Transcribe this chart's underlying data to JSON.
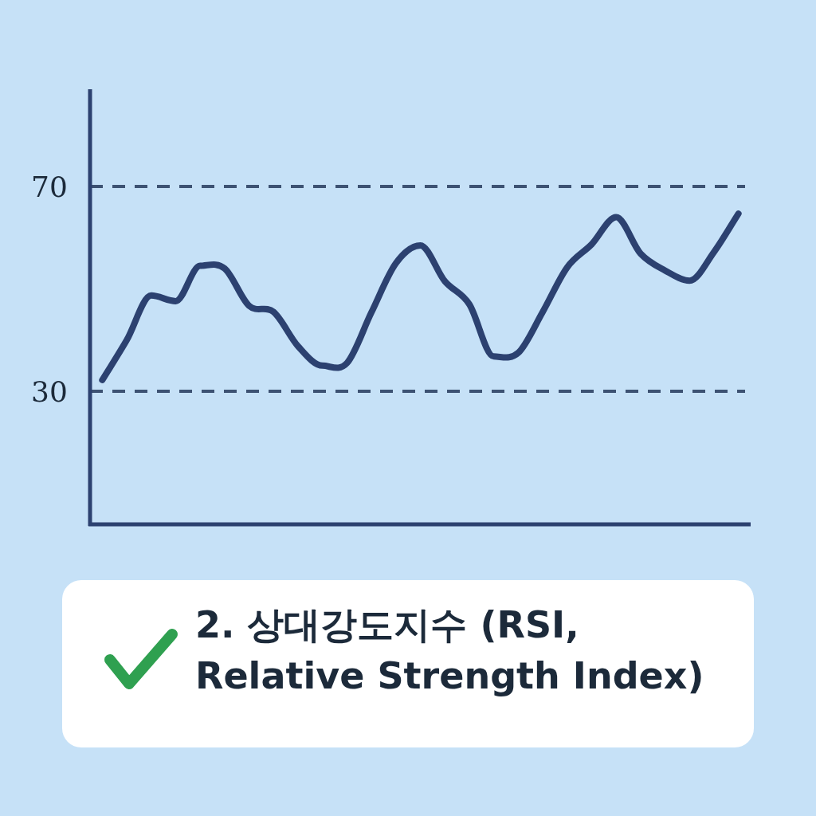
{
  "chart_data": {
    "type": "line",
    "title": "2. 상대강도지수 (RSI, Relative Strength Index)",
    "categories": [
      null,
      null,
      null,
      null,
      null,
      null,
      null,
      null,
      null,
      null,
      null,
      null,
      null,
      null,
      null,
      null,
      null,
      null,
      null,
      null,
      null,
      null,
      null,
      null,
      null,
      null,
      null
    ],
    "values": [
      32.2,
      40,
      48.7,
      47.6,
      54.5,
      54,
      46.7,
      45.5,
      38.8,
      35,
      35.5,
      45.4,
      55,
      58.5,
      51.5,
      47,
      36.8,
      37.5,
      45.5,
      54.2,
      58.7,
      64,
      56.9,
      53.6,
      51.6,
      57.2,
      64.7
    ],
    "color": "#2c4170",
    "line_style": "solid",
    "ylim": [
      4,
      89
    ],
    "yticks": [
      30,
      70
    ],
    "tick_labels": "y",
    "ref_lines": [
      {
        "axis": "y",
        "value": 70,
        "color": "#3d5273",
        "line_style": "dashed"
      },
      {
        "axis": "y",
        "value": 30,
        "color": "#3d5273",
        "line_style": "dashed"
      }
    ]
  }
}
